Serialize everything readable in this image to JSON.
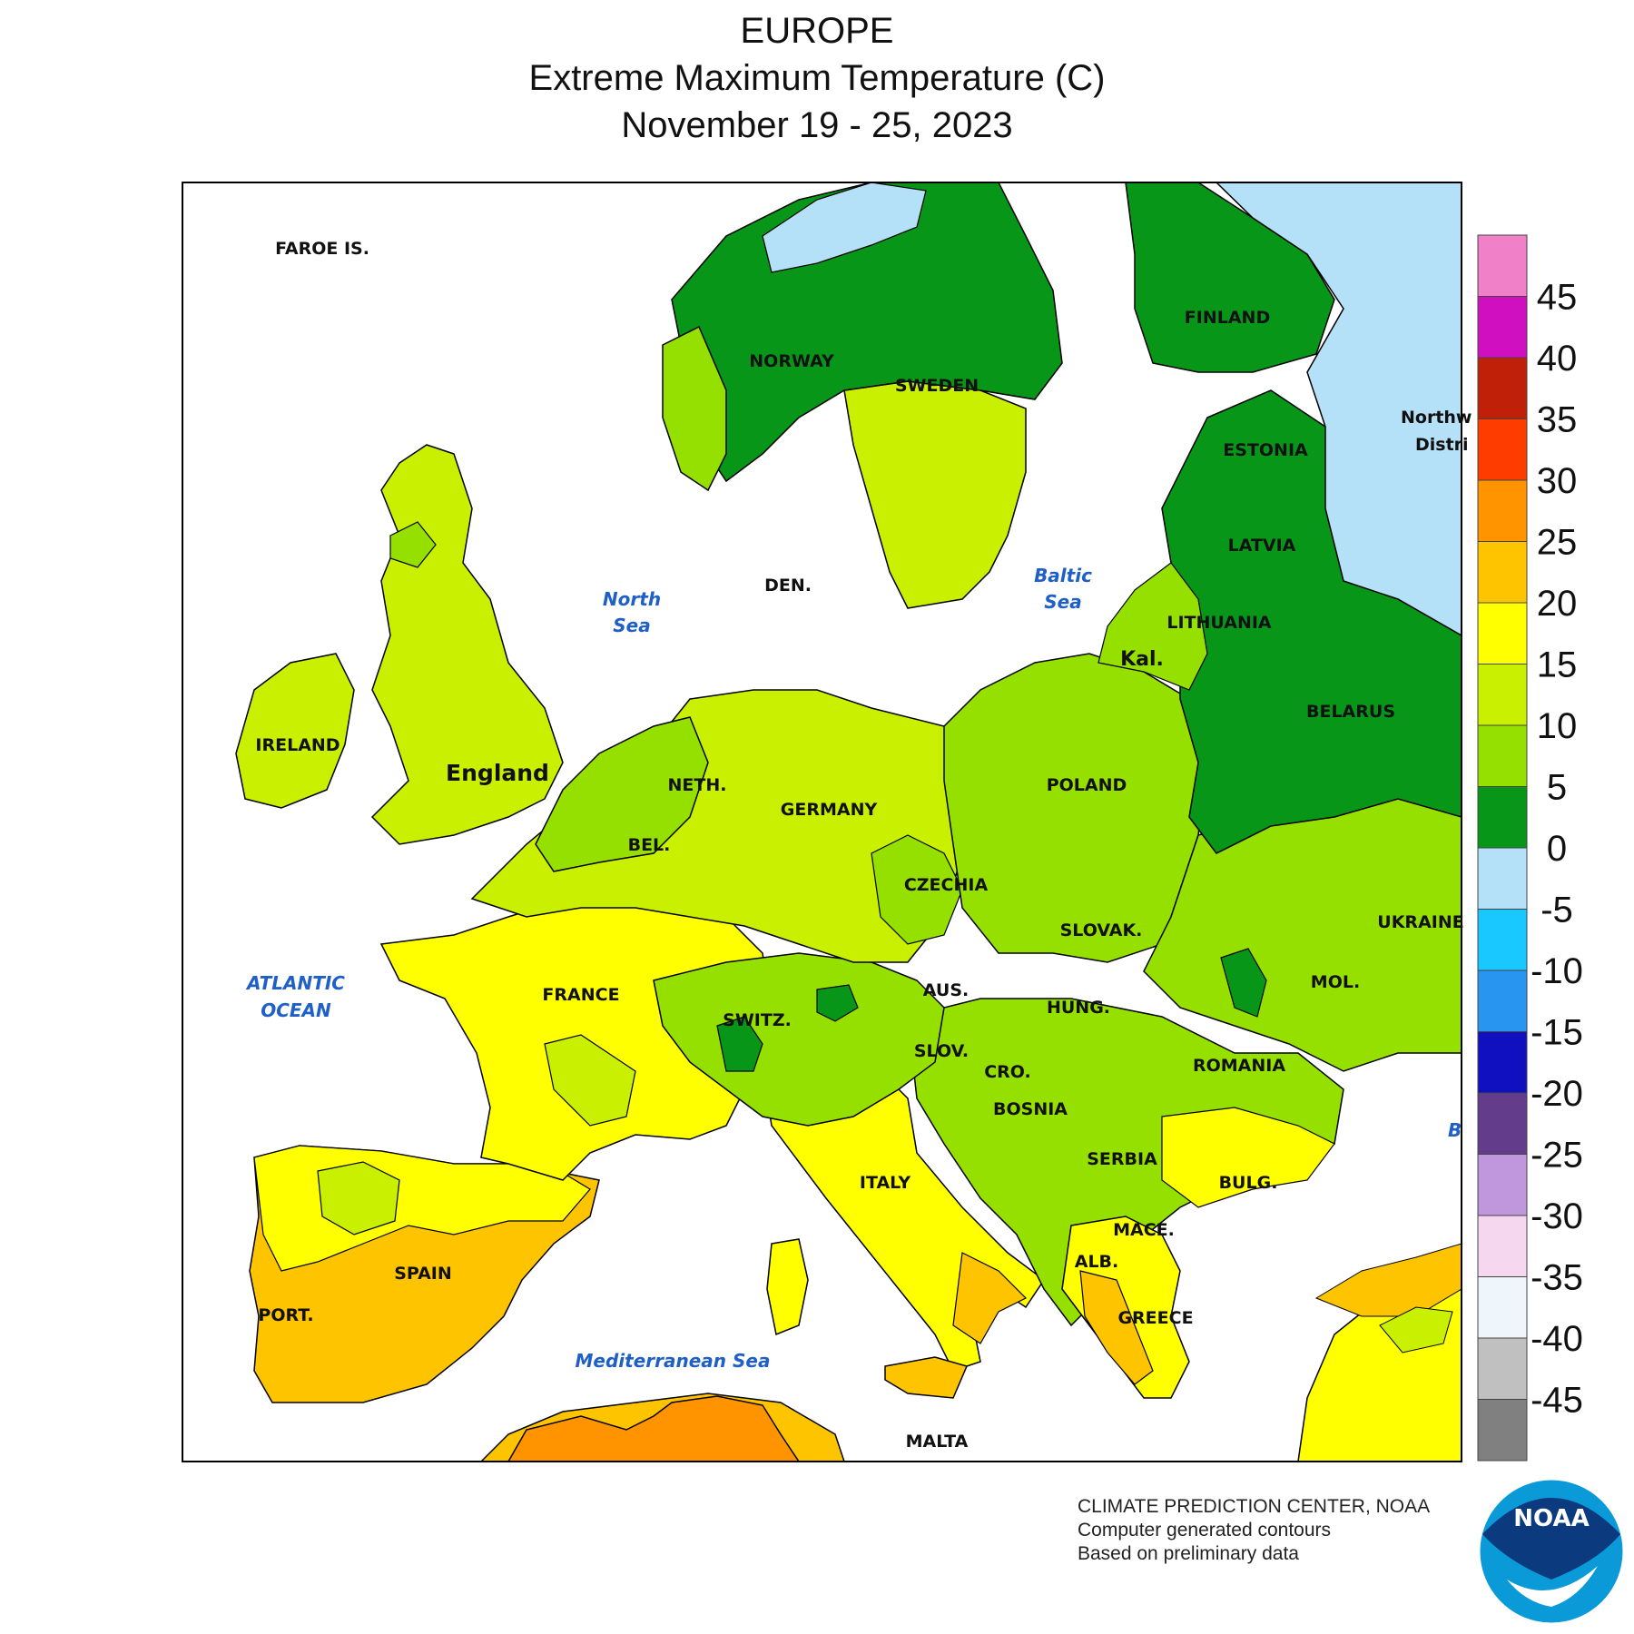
{
  "header": {
    "title": "EUROPE",
    "subtitle": "Extreme Maximum Temperature (C)",
    "dates": "November 19 - 25, 2023"
  },
  "labels": {
    "countries": {
      "faroe": "FAROE IS.",
      "norway": "NORWAY",
      "sweden": "SWEDEN",
      "finland": "FINLAND",
      "estonia": "ESTONIA",
      "latvia": "LATVIA",
      "lithuania": "LITHUANIA",
      "belarus": "BELARUS",
      "ireland": "IRELAND",
      "england": "England",
      "denmark": "DEN.",
      "netherlands": "NETH.",
      "belgium": "BEL.",
      "germany": "GERMANY",
      "poland": "POLAND",
      "czechia": "CZECHIA",
      "slovakia": "SLOVAK.",
      "ukraine": "UKRAINE",
      "moldova": "MOL.",
      "france": "FRANCE",
      "switzerland": "SWITZ.",
      "austria": "AUS.",
      "hungary": "HUNG.",
      "romania": "ROMANIA",
      "slovenia": "SLOV.",
      "croatia": "CRO.",
      "bosnia": "BOSNIA",
      "serbia": "SERBIA",
      "bulgaria": "BULG.",
      "italy": "ITALY",
      "macedonia": "MACE.",
      "albania": "ALB.",
      "greece": "GREECE",
      "spain": "SPAIN",
      "portugal": "PORT.",
      "malta": "MALTA",
      "kaliningrad": "Kal.",
      "northwest_1": "Northw",
      "northwest_2": "Distri",
      "black_sea_partial": "B"
    },
    "seas": {
      "north_1": "North",
      "north_2": "Sea",
      "baltic_1": "Baltic",
      "baltic_2": "Sea",
      "atlantic_1": "ATLANTIC",
      "atlantic_2": "OCEAN",
      "mediterranean": "Mediterranean Sea"
    }
  },
  "legend": {
    "ticks": [
      "45",
      "40",
      "35",
      "30",
      "25",
      "20",
      "15",
      "10",
      "5",
      "0",
      "-5",
      "-10",
      "-15",
      "-20",
      "-25",
      "-30",
      "-35",
      "-40",
      "-45"
    ],
    "colors": [
      "#f080c8",
      "#d010c0",
      "#c02008",
      "#ff3c00",
      "#ff9400",
      "#ffc400",
      "#ffff00",
      "#c8f000",
      "#96e000",
      "#089618",
      "#b4e0f8",
      "#18c8ff",
      "#2896f0",
      "#1010c0",
      "#643c8c",
      "#c096dc",
      "#f5d8f0",
      "#eef6fc",
      "#c0c0c0",
      "#808080"
    ]
  },
  "credits": {
    "line1": "CLIMATE PREDICTION CENTER, NOAA",
    "line2": "Computer generated contours",
    "line3": "Based on preliminary data",
    "logo_text": "NOAA"
  },
  "colors": {
    "sea": "#ffffff",
    "t_minus5_0": "#b4e0f8",
    "t_0_5": "#089618",
    "t_5_10": "#96e000",
    "t_10_15": "#c8f000",
    "t_15_20": "#ffff00",
    "t_20_25": "#ffc400",
    "t_25_30": "#ff9400"
  }
}
